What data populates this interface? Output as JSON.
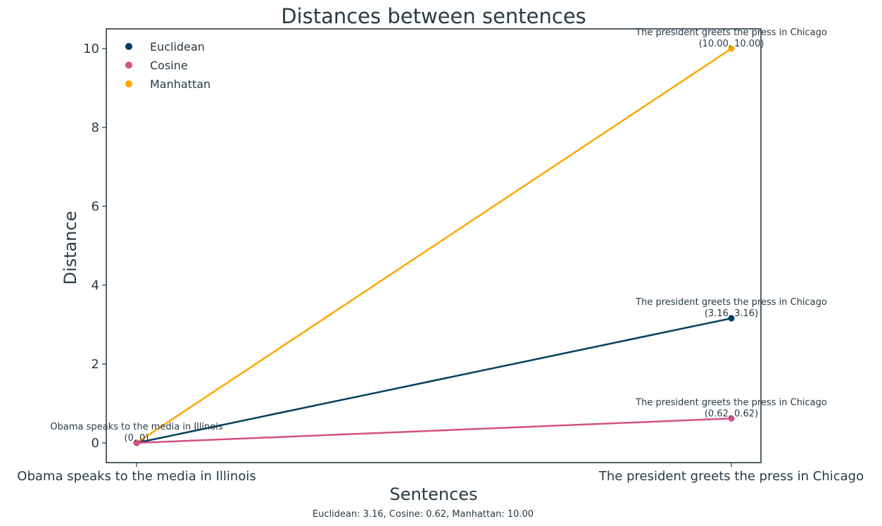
{
  "chart_data": {
    "type": "line",
    "title": "Distances between sentences",
    "xlabel": "Sentences",
    "ylabel": "Distance",
    "categories": [
      "Obama speaks to the media in Illinois",
      "The president greets the press in Chicago"
    ],
    "ylim": [
      -0.5,
      10.5
    ],
    "yticks": [
      0,
      2,
      4,
      6,
      8,
      10
    ],
    "grid": false,
    "legend_position": "top-left",
    "series": [
      {
        "name": "Euclidean",
        "values": [
          0,
          3.16
        ],
        "color": "#003f5c"
      },
      {
        "name": "Cosine",
        "values": [
          0,
          0.62
        ],
        "color": "#d45087"
      },
      {
        "name": "Manhattan",
        "values": [
          0,
          10.0
        ],
        "color": "#ffa600"
      }
    ],
    "annotations": [
      {
        "name": "Obama speaks to the media in Illinois",
        "coords": "(0, 0)",
        "x_index": 0,
        "y": 0
      },
      {
        "name": "The president greets the press in Chicago",
        "coords": "(3.16, 3.16)",
        "x_index": 1,
        "y": 3.16
      },
      {
        "name": "The president greets the press in Chicago",
        "coords": "(0.62, 0.62)",
        "x_index": 1,
        "y": 0.62
      },
      {
        "name": "The president greets the press in Chicago",
        "coords": "(10.00, 10.00)",
        "x_index": 1,
        "y": 10.0
      }
    ],
    "footer": "Euclidean: 3.16, Cosine: 0.62, Manhattan: 10.00"
  }
}
